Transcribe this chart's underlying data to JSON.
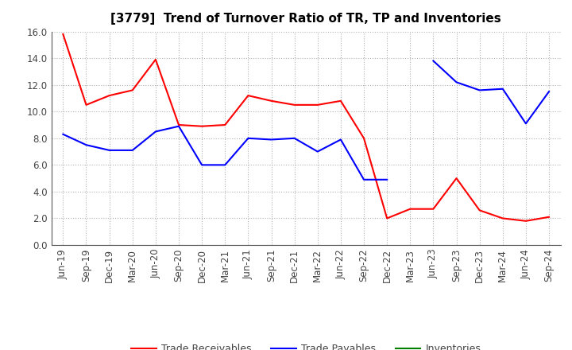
{
  "title": "[3779]  Trend of Turnover Ratio of TR, TP and Inventories",
  "x_labels": [
    "Jun-19",
    "Sep-19",
    "Dec-19",
    "Mar-20",
    "Jun-20",
    "Sep-20",
    "Dec-20",
    "Mar-21",
    "Jun-21",
    "Sep-21",
    "Dec-21",
    "Mar-22",
    "Jun-22",
    "Sep-22",
    "Dec-22",
    "Mar-23",
    "Jun-23",
    "Sep-23",
    "Dec-23",
    "Mar-24",
    "Jun-24",
    "Sep-24"
  ],
  "trade_receivables": [
    15.8,
    10.5,
    11.2,
    11.6,
    13.9,
    9.0,
    8.9,
    9.0,
    11.2,
    10.8,
    10.5,
    10.5,
    10.8,
    8.0,
    2.0,
    2.7,
    2.7,
    5.0,
    2.6,
    2.0,
    1.8,
    2.1
  ],
  "trade_payables": [
    8.3,
    7.5,
    7.1,
    7.1,
    8.5,
    8.9,
    6.0,
    6.0,
    8.0,
    7.9,
    8.0,
    7.0,
    7.9,
    4.9,
    4.9,
    null,
    13.8,
    12.2,
    11.6,
    11.7,
    9.1,
    11.5
  ],
  "inventories": [
    null,
    null,
    null,
    null,
    null,
    null,
    null,
    null,
    null,
    null,
    null,
    null,
    null,
    null,
    null,
    null,
    null,
    null,
    null,
    null,
    null,
    null
  ],
  "ylim": [
    0.0,
    16.0
  ],
  "yticks": [
    0.0,
    2.0,
    4.0,
    6.0,
    8.0,
    10.0,
    12.0,
    14.0,
    16.0
  ],
  "tr_color": "#ff0000",
  "tp_color": "#0000ff",
  "inv_color": "#008000",
  "background_color": "#ffffff",
  "grid_color": "#b0b0b0",
  "title_fontsize": 11,
  "tick_fontsize": 8.5,
  "legend_fontsize": 9
}
